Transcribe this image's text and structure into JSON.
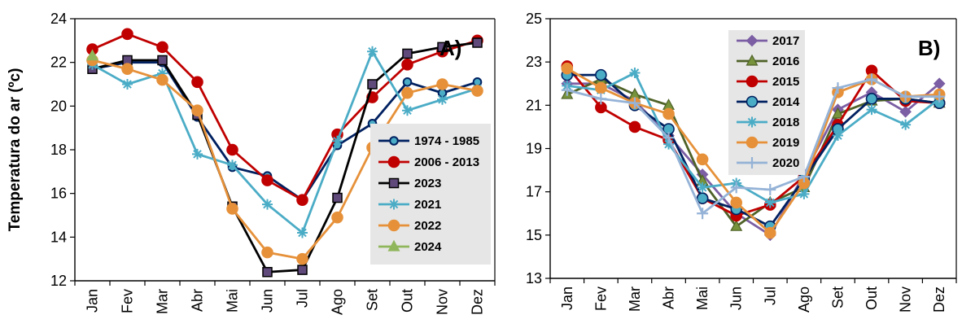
{
  "colors": {
    "navy": "#002060",
    "red": "#c00000",
    "black": "#000000",
    "teal": "#4bacc6",
    "orange": "#e6913a",
    "green": "#8fb65a",
    "purple": "#7b5ea3",
    "olive": "#4f6228",
    "steel": "#1f6f8b",
    "lavender": "#95b3d7",
    "legend_bg": "#e6e6e6"
  },
  "chart_data": [
    {
      "type": "line",
      "panel_label": "A)",
      "ylabel": "Temperatura do ar (ºc)",
      "ylim": [
        12,
        24
      ],
      "yticks": [
        "12",
        "14",
        "16",
        "18",
        "20",
        "22",
        "24"
      ],
      "categories": [
        "Jan",
        "Fev",
        "Mar",
        "Abr",
        "Mai",
        "Jun",
        "Jul",
        "Ago",
        "Set",
        "Out",
        "Nov",
        "Dez"
      ],
      "legend_position": "right",
      "series": [
        {
          "name": "1974 - 1985",
          "color": "#002060",
          "marker": "circle-small",
          "fill": "#4bacc6",
          "values": [
            21.7,
            22.0,
            22.0,
            19.5,
            17.2,
            16.8,
            15.7,
            18.2,
            19.2,
            21.1,
            20.6,
            21.1
          ]
        },
        {
          "name": "2006 - 2013",
          "color": "#c00000",
          "marker": "circle",
          "fill": "#c00000",
          "values": [
            22.6,
            23.3,
            22.7,
            21.1,
            18.0,
            16.6,
            15.7,
            18.7,
            20.4,
            21.9,
            22.5,
            23.0
          ]
        },
        {
          "name": "2023",
          "color": "#000000",
          "marker": "square",
          "fill": "#604a7b",
          "values": [
            21.7,
            22.1,
            22.1,
            19.6,
            15.4,
            12.4,
            12.5,
            15.8,
            21.0,
            22.4,
            22.7,
            22.9
          ]
        },
        {
          "name": "2021",
          "color": "#4bacc6",
          "marker": "star",
          "fill": "#4bacc6",
          "values": [
            21.9,
            21.0,
            21.5,
            17.8,
            17.3,
            15.5,
            14.2,
            18.4,
            22.5,
            19.8,
            20.3,
            20.8
          ]
        },
        {
          "name": "2022",
          "color": "#e6913a",
          "marker": "circle",
          "fill": "#e6913a",
          "values": [
            22.1,
            21.7,
            21.2,
            19.8,
            15.3,
            13.3,
            13.0,
            14.9,
            18.1,
            20.6,
            21.0,
            20.7
          ]
        },
        {
          "name": "2024",
          "color": "#8fb65a",
          "marker": "triangle",
          "fill": "#8fb65a",
          "values": [
            22.3,
            null,
            null,
            null,
            null,
            null,
            null,
            null,
            null,
            null,
            null,
            null
          ]
        }
      ]
    },
    {
      "type": "line",
      "panel_label": "B)",
      "ylim": [
        13,
        25
      ],
      "yticks": [
        "13",
        "15",
        "17",
        "19",
        "21",
        "23",
        "25"
      ],
      "categories": [
        "Jan",
        "Fev",
        "Mar",
        "Abr",
        "Mai",
        "Jun",
        "Jul",
        "Ago",
        "Set",
        "Out",
        "Nov",
        "Dez"
      ],
      "legend_position": "top-left",
      "series": [
        {
          "name": "2017",
          "color": "#7b5ea3",
          "marker": "diamond",
          "fill": "#7b5ea3",
          "values": [
            22.0,
            22.0,
            21.2,
            19.6,
            17.8,
            16.0,
            15.0,
            17.8,
            20.8,
            21.6,
            20.7,
            22.0
          ]
        },
        {
          "name": "2016",
          "color": "#4f6228",
          "marker": "triangle",
          "fill": "#77933c",
          "values": [
            21.5,
            22.2,
            21.5,
            21.0,
            17.5,
            15.4,
            16.5,
            17.2,
            20.6,
            21.2,
            21.3,
            21.1
          ]
        },
        {
          "name": "2015",
          "color": "#c00000",
          "marker": "circle",
          "fill": "#c00000",
          "values": [
            22.8,
            20.9,
            20.0,
            19.4,
            16.7,
            15.9,
            16.4,
            17.7,
            20.1,
            22.6,
            21.2,
            21.1
          ]
        },
        {
          "name": "2014",
          "color": "#002060",
          "marker": "circle",
          "fill": "#4bacc6",
          "values": [
            22.4,
            22.4,
            21.0,
            19.9,
            16.7,
            16.2,
            15.4,
            17.6,
            19.9,
            21.3,
            21.3,
            21.1
          ]
        },
        {
          "name": "2018",
          "color": "#4bacc6",
          "marker": "star",
          "fill": "#4bacc6",
          "values": [
            21.9,
            21.7,
            22.5,
            19.2,
            17.2,
            17.4,
            16.5,
            16.9,
            19.6,
            20.8,
            20.1,
            21.3
          ]
        },
        {
          "name": "2019",
          "color": "#e6913a",
          "marker": "circle",
          "fill": "#e6913a",
          "values": [
            22.7,
            21.8,
            21.1,
            20.6,
            18.5,
            16.5,
            15.1,
            17.4,
            21.6,
            22.2,
            21.4,
            21.5
          ]
        },
        {
          "name": "2020",
          "color": "#95b3d7",
          "marker": "plus",
          "fill": "#95b3d7",
          "values": [
            21.7,
            21.3,
            21.1,
            19.5,
            16.0,
            17.2,
            17.1,
            17.7,
            21.8,
            22.2,
            21.4,
            21.4
          ]
        }
      ]
    }
  ]
}
